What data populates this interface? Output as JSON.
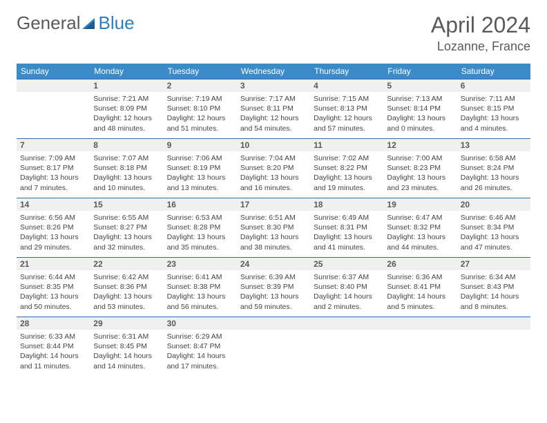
{
  "logo": {
    "part1": "General",
    "part2": "Blue"
  },
  "title": "April 2024",
  "location": "Lozanne, France",
  "colors": {
    "header_bg": "#3b8bc8",
    "header_text": "#ffffff",
    "daynum_bg": "#f0f0f0",
    "daynum_border": "#2d6ea8",
    "text": "#444444",
    "logo_gray": "#5a5a5a",
    "logo_blue": "#2d7dc0"
  },
  "weekdays": [
    "Sunday",
    "Monday",
    "Tuesday",
    "Wednesday",
    "Thursday",
    "Friday",
    "Saturday"
  ],
  "weeks": [
    [
      null,
      {
        "n": "1",
        "sr": "7:21 AM",
        "ss": "8:09 PM",
        "dl": "12 hours and 48 minutes."
      },
      {
        "n": "2",
        "sr": "7:19 AM",
        "ss": "8:10 PM",
        "dl": "12 hours and 51 minutes."
      },
      {
        "n": "3",
        "sr": "7:17 AM",
        "ss": "8:11 PM",
        "dl": "12 hours and 54 minutes."
      },
      {
        "n": "4",
        "sr": "7:15 AM",
        "ss": "8:13 PM",
        "dl": "12 hours and 57 minutes."
      },
      {
        "n": "5",
        "sr": "7:13 AM",
        "ss": "8:14 PM",
        "dl": "13 hours and 0 minutes."
      },
      {
        "n": "6",
        "sr": "7:11 AM",
        "ss": "8:15 PM",
        "dl": "13 hours and 4 minutes."
      }
    ],
    [
      {
        "n": "7",
        "sr": "7:09 AM",
        "ss": "8:17 PM",
        "dl": "13 hours and 7 minutes."
      },
      {
        "n": "8",
        "sr": "7:07 AM",
        "ss": "8:18 PM",
        "dl": "13 hours and 10 minutes."
      },
      {
        "n": "9",
        "sr": "7:06 AM",
        "ss": "8:19 PM",
        "dl": "13 hours and 13 minutes."
      },
      {
        "n": "10",
        "sr": "7:04 AM",
        "ss": "8:20 PM",
        "dl": "13 hours and 16 minutes."
      },
      {
        "n": "11",
        "sr": "7:02 AM",
        "ss": "8:22 PM",
        "dl": "13 hours and 19 minutes."
      },
      {
        "n": "12",
        "sr": "7:00 AM",
        "ss": "8:23 PM",
        "dl": "13 hours and 23 minutes."
      },
      {
        "n": "13",
        "sr": "6:58 AM",
        "ss": "8:24 PM",
        "dl": "13 hours and 26 minutes."
      }
    ],
    [
      {
        "n": "14",
        "sr": "6:56 AM",
        "ss": "8:26 PM",
        "dl": "13 hours and 29 minutes."
      },
      {
        "n": "15",
        "sr": "6:55 AM",
        "ss": "8:27 PM",
        "dl": "13 hours and 32 minutes."
      },
      {
        "n": "16",
        "sr": "6:53 AM",
        "ss": "8:28 PM",
        "dl": "13 hours and 35 minutes."
      },
      {
        "n": "17",
        "sr": "6:51 AM",
        "ss": "8:30 PM",
        "dl": "13 hours and 38 minutes."
      },
      {
        "n": "18",
        "sr": "6:49 AM",
        "ss": "8:31 PM",
        "dl": "13 hours and 41 minutes."
      },
      {
        "n": "19",
        "sr": "6:47 AM",
        "ss": "8:32 PM",
        "dl": "13 hours and 44 minutes."
      },
      {
        "n": "20",
        "sr": "6:46 AM",
        "ss": "8:34 PM",
        "dl": "13 hours and 47 minutes."
      }
    ],
    [
      {
        "n": "21",
        "sr": "6:44 AM",
        "ss": "8:35 PM",
        "dl": "13 hours and 50 minutes."
      },
      {
        "n": "22",
        "sr": "6:42 AM",
        "ss": "8:36 PM",
        "dl": "13 hours and 53 minutes."
      },
      {
        "n": "23",
        "sr": "6:41 AM",
        "ss": "8:38 PM",
        "dl": "13 hours and 56 minutes."
      },
      {
        "n": "24",
        "sr": "6:39 AM",
        "ss": "8:39 PM",
        "dl": "13 hours and 59 minutes."
      },
      {
        "n": "25",
        "sr": "6:37 AM",
        "ss": "8:40 PM",
        "dl": "14 hours and 2 minutes."
      },
      {
        "n": "26",
        "sr": "6:36 AM",
        "ss": "8:41 PM",
        "dl": "14 hours and 5 minutes."
      },
      {
        "n": "27",
        "sr": "6:34 AM",
        "ss": "8:43 PM",
        "dl": "14 hours and 8 minutes."
      }
    ],
    [
      {
        "n": "28",
        "sr": "6:33 AM",
        "ss": "8:44 PM",
        "dl": "14 hours and 11 minutes."
      },
      {
        "n": "29",
        "sr": "6:31 AM",
        "ss": "8:45 PM",
        "dl": "14 hours and 14 minutes."
      },
      {
        "n": "30",
        "sr": "6:29 AM",
        "ss": "8:47 PM",
        "dl": "14 hours and 17 minutes."
      },
      null,
      null,
      null,
      null
    ]
  ],
  "labels": {
    "sunrise": "Sunrise:",
    "sunset": "Sunset:",
    "daylight": "Daylight:"
  }
}
